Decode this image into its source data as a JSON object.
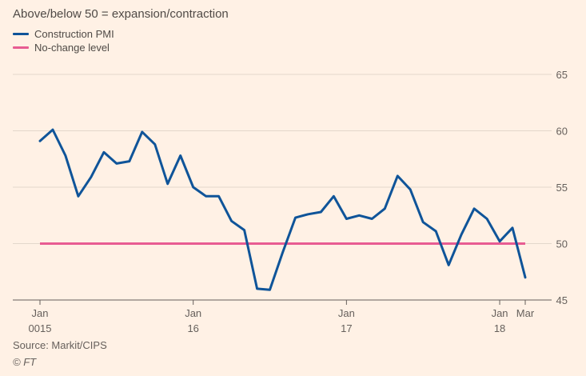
{
  "chart_data": {
    "type": "line",
    "subtitle": "Above/below 50 = expansion/contraction",
    "legend": [
      {
        "name": "Construction PMI",
        "color": "#0f5499"
      },
      {
        "name": "No-change level",
        "color": "#e85c92"
      }
    ],
    "series": [
      {
        "name": "Construction PMI",
        "color": "#0f5499",
        "values": [
          59.1,
          60.1,
          57.8,
          54.2,
          55.9,
          58.1,
          57.1,
          57.3,
          59.9,
          58.8,
          55.3,
          57.8,
          55.0,
          54.2,
          54.2,
          52.0,
          51.2,
          46.0,
          45.9,
          49.2,
          52.3,
          52.6,
          52.8,
          54.2,
          52.2,
          52.5,
          52.2,
          53.1,
          56.0,
          54.8,
          51.9,
          51.1,
          48.1,
          50.8,
          53.1,
          52.2,
          50.2,
          51.4,
          47.0
        ]
      },
      {
        "name": "No-change level",
        "color": "#e85c92",
        "values": [
          50,
          50
        ]
      }
    ],
    "x_range": [
      0,
      38
    ],
    "ylim": [
      45,
      65
    ],
    "yticks": [
      45,
      50,
      55,
      60,
      65
    ],
    "xticks": [
      {
        "index": 0,
        "line1": "Jan",
        "line2": "0015"
      },
      {
        "index": 12,
        "line1": "Jan",
        "line2": "16"
      },
      {
        "index": 24,
        "line1": "Jan",
        "line2": "17"
      },
      {
        "index": 36,
        "line1": "Jan",
        "line2": "18"
      },
      {
        "index": 38,
        "line1": "Mar",
        "line2": ""
      }
    ],
    "grid": true,
    "source": "Source: Markit/CIPS",
    "brand": "© FT"
  }
}
